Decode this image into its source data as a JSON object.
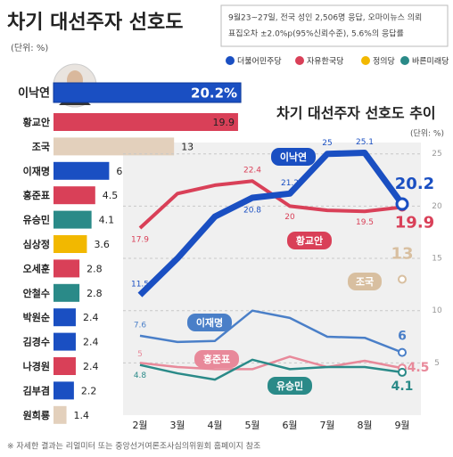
{
  "title": "차기 대선주자 선호도",
  "unit": "(단위: %)",
  "note": [
    "9월23~27일, 전국 성인 2,506명 응답, 오마이뉴스 의뢰",
    "표집오차 ±2.0%p(95%신뢰수준), 5.6%의 응답률"
  ],
  "legend": [
    {
      "name": "더불어민주당",
      "color": "#1a4fc2"
    },
    {
      "name": "자유한국당",
      "color": "#d94058"
    },
    {
      "name": "정의당",
      "color": "#f2b800"
    },
    {
      "name": "바른미래당",
      "color": "#2a8a88"
    }
  ],
  "footnote": "※ 자세한 결과는 리얼미터 또는 중앙선거여론조사심의위원회 홈페이지 참조",
  "chart_data": [
    {
      "type": "hbar",
      "categories": [
        "이낙연",
        "황교안",
        "조국",
        "이재명",
        "홍준표",
        "유승민",
        "심상정",
        "오세훈",
        "안철수",
        "박원순",
        "김경수",
        "나경원",
        "김부겸",
        "원희룡"
      ],
      "values": [
        20.2,
        19.9,
        13,
        6,
        4.5,
        4.1,
        3.6,
        2.8,
        2.8,
        2.4,
        2.4,
        2.4,
        2.2,
        1.4
      ],
      "value_labels": [
        "20.2%",
        "19.9",
        "13",
        "6",
        "4.5",
        "4.1",
        "3.6",
        "2.8",
        "2.8",
        "2.4",
        "2.4",
        "2.4",
        "2.2",
        "1.4"
      ],
      "colors": [
        "#1a4fc2",
        "#d94058",
        "#e3d0bc",
        "#1a4fc2",
        "#d94058",
        "#2a8a88",
        "#f2b800",
        "#d94058",
        "#2a8a88",
        "#1a4fc2",
        "#1a4fc2",
        "#d94058",
        "#1a4fc2",
        "#e3d0bc"
      ]
    },
    {
      "type": "line",
      "title": "차기 대선주자 선호도 추이",
      "unit": "(단위: %)",
      "categories": [
        "2월",
        "3월",
        "4월",
        "5월",
        "6월",
        "7월",
        "8월",
        "9월"
      ],
      "ylim": [
        0,
        26
      ],
      "yticks": [
        5,
        10,
        15,
        20,
        25
      ],
      "grid": true,
      "series": [
        {
          "name": "이낙연",
          "color": "#1a4fc2",
          "values": [
            11.5,
            15,
            19,
            20.8,
            21.2,
            25,
            25.1,
            20.2
          ],
          "value_labels": [
            "11.5",
            null,
            null,
            "20.8",
            "21.2",
            "25",
            "25.1",
            "20.2"
          ]
        },
        {
          "name": "황교안",
          "color": "#d94058",
          "values": [
            17.9,
            21.2,
            22,
            22.4,
            20,
            19.6,
            19.5,
            19.9
          ],
          "value_labels": [
            "17.9",
            null,
            null,
            "22.4",
            "20",
            null,
            "19.5",
            "19.9"
          ]
        },
        {
          "name": "조국",
          "color": "#d8bfa0",
          "values": [
            null,
            null,
            null,
            null,
            null,
            null,
            null,
            13
          ],
          "value_labels": [
            null,
            null,
            null,
            null,
            null,
            null,
            null,
            "13"
          ]
        },
        {
          "name": "이재명",
          "color": "#4a7fc8",
          "values": [
            7.6,
            7,
            7.1,
            10,
            9.3,
            7.5,
            7.4,
            6
          ],
          "value_labels": [
            "7.6",
            null,
            null,
            null,
            null,
            null,
            null,
            "6"
          ]
        },
        {
          "name": "홍준표",
          "color": "#e8899a",
          "values": [
            5,
            4.6,
            4.4,
            4.4,
            5.6,
            4.6,
            5.2,
            4.5
          ],
          "value_labels": [
            "5",
            null,
            null,
            null,
            null,
            null,
            null,
            "4.5"
          ]
        },
        {
          "name": "유승민",
          "color": "#2a8a88",
          "values": [
            4.8,
            4,
            3.4,
            5.3,
            4.4,
            4.6,
            4.6,
            4.1
          ],
          "value_labels": [
            "4.8",
            null,
            null,
            null,
            null,
            null,
            null,
            "4.1"
          ]
        }
      ]
    }
  ]
}
